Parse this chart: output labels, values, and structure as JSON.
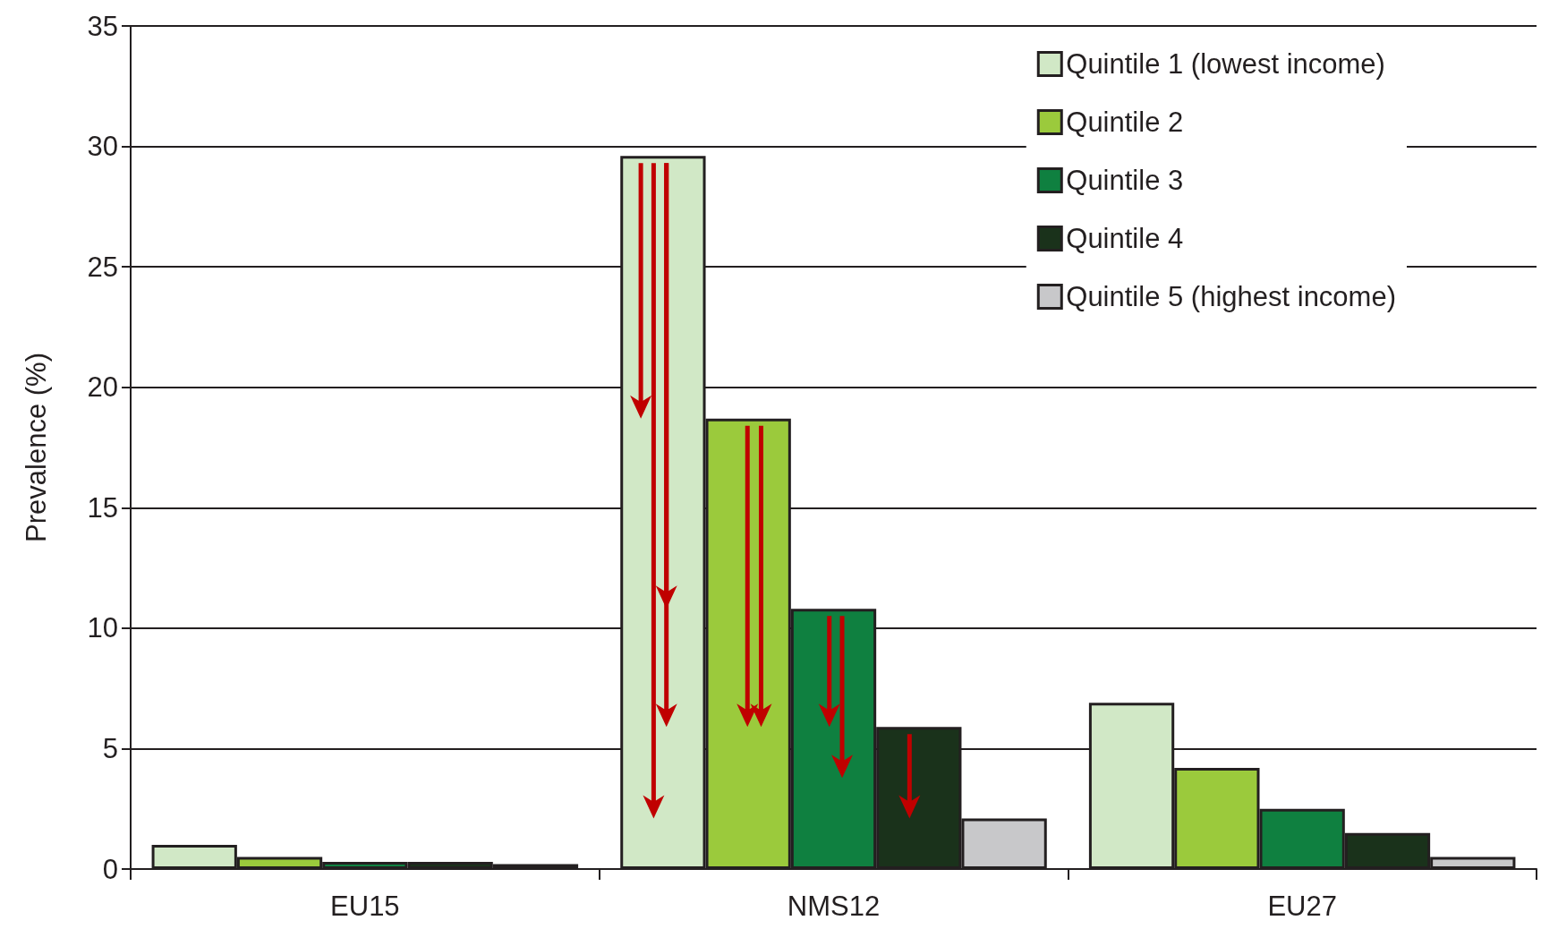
{
  "chart_data": {
    "type": "bar",
    "ylabel": "Prevalence (%)",
    "categories": [
      "EU15",
      "NMS12",
      "EU27"
    ],
    "series": [
      {
        "name": "Quintile 1 (lowest income)",
        "color": "#d1e8c6",
        "values": [
          1.0,
          29.6,
          6.9
        ]
      },
      {
        "name": "Quintile 2",
        "color": "#9bca3c",
        "values": [
          0.5,
          18.7,
          4.2
        ]
      },
      {
        "name": "Quintile 3",
        "color": "#0f8040",
        "values": [
          0.3,
          10.8,
          2.5
        ]
      },
      {
        "name": "Quintile 4",
        "color": "#1a321b",
        "values": [
          0.3,
          5.9,
          1.5
        ]
      },
      {
        "name": "Quintile 5 (highest income)",
        "color": "#c8c8ca",
        "values": [
          0.2,
          2.1,
          0.5
        ]
      }
    ],
    "ylim": [
      0,
      35
    ],
    "yticks": [
      0,
      5,
      10,
      15,
      20,
      25,
      30,
      35
    ],
    "grid": "y",
    "legend": "top right"
  }
}
